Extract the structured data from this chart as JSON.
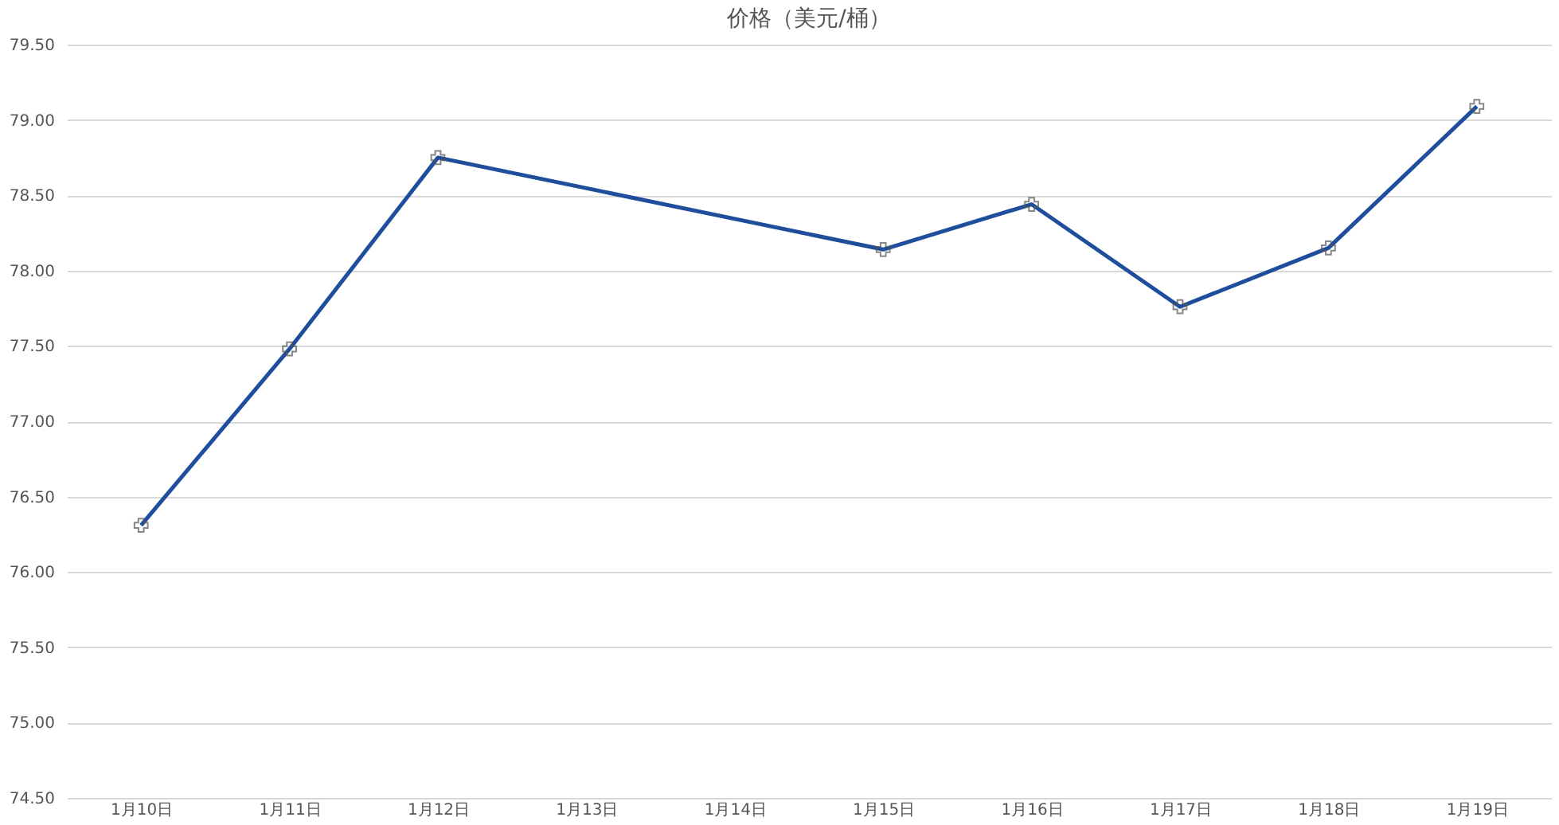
{
  "chart_data": {
    "type": "line",
    "title": "价格（美元/桶）",
    "categories": [
      "1月10日",
      "1月11日",
      "1月12日",
      "1月13日",
      "1月14日",
      "1月15日",
      "1月16日",
      "1月17日",
      "1月18日",
      "1月19日"
    ],
    "series": [
      {
        "color": "#1f4e9c",
        "values": [
          76.31,
          77.48,
          78.75,
          null,
          null,
          78.14,
          78.44,
          77.76,
          78.15,
          79.09
        ]
      }
    ],
    "ylim": [
      74.5,
      79.5
    ],
    "yticks": [
      {
        "value": 74.5,
        "label": "74.50"
      },
      {
        "value": 75,
        "label": "75.00"
      },
      {
        "value": 75.5,
        "label": "75.50"
      },
      {
        "value": 76,
        "label": "76.00"
      },
      {
        "value": 76.5,
        "label": "76.50"
      },
      {
        "value": 77,
        "label": "77.00"
      },
      {
        "value": 77.5,
        "label": "77.50"
      },
      {
        "value": 78,
        "label": "78.00"
      },
      {
        "value": 78.5,
        "label": "78.50"
      },
      {
        "value": 79,
        "label": "79.00"
      },
      {
        "value": 79.5,
        "label": "79.50"
      }
    ],
    "grid": "y",
    "marker": "cross",
    "line_style": "solid"
  }
}
